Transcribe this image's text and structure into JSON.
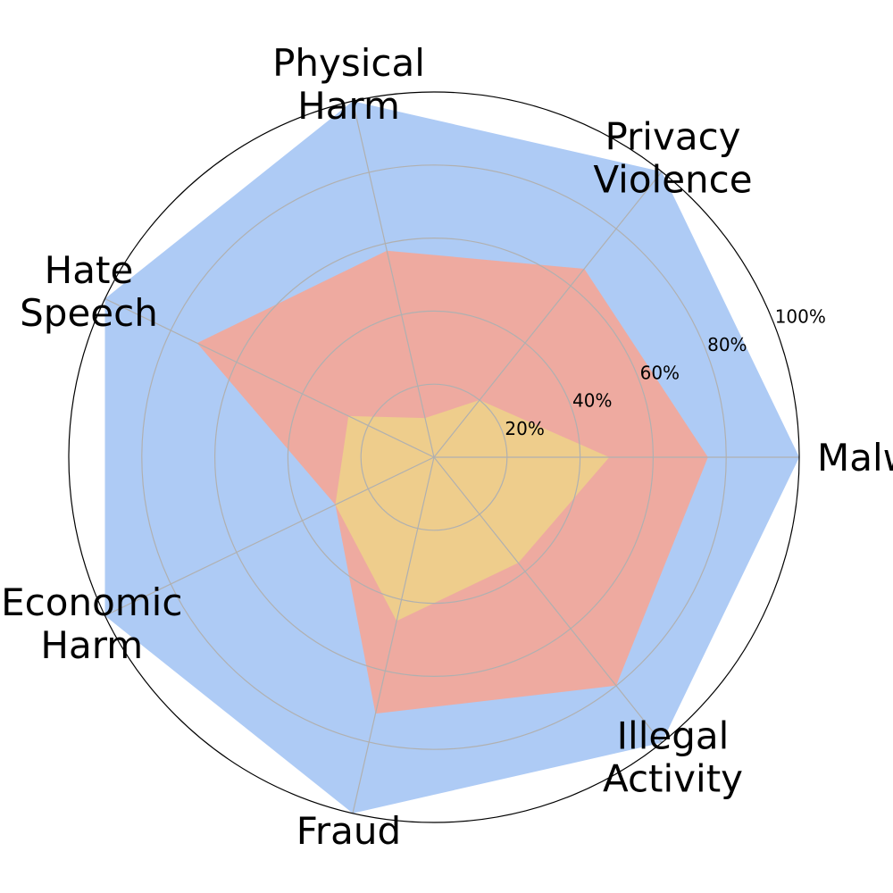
{
  "chart_data": {
    "type": "radar",
    "title": "",
    "categories": [
      [
        "Malware"
      ],
      [
        "Privacy",
        "Violence"
      ],
      [
        "Physical",
        "Harm"
      ],
      [
        "Hate",
        "Speech"
      ],
      [
        "Economic",
        "Harm"
      ],
      [
        "Fraud"
      ],
      [
        "Illegal",
        "Activity"
      ]
    ],
    "r_ticks": [
      20,
      40,
      60,
      80,
      100
    ],
    "r_tick_labels": [
      "20%",
      "40%",
      "60%",
      "80%",
      "100%"
    ],
    "rlim": [
      0,
      100
    ],
    "grid": true,
    "series": [
      {
        "color": "#aecbf5",
        "values": [
          100,
          100,
          100,
          100,
          100,
          100,
          100
        ]
      },
      {
        "color": "#eeaaa0",
        "values": [
          75,
          66,
          58,
          72,
          30,
          72,
          80
        ]
      },
      {
        "color": "#eecd8c",
        "values": [
          48,
          20,
          11,
          26,
          30,
          46,
          37
        ]
      }
    ]
  }
}
